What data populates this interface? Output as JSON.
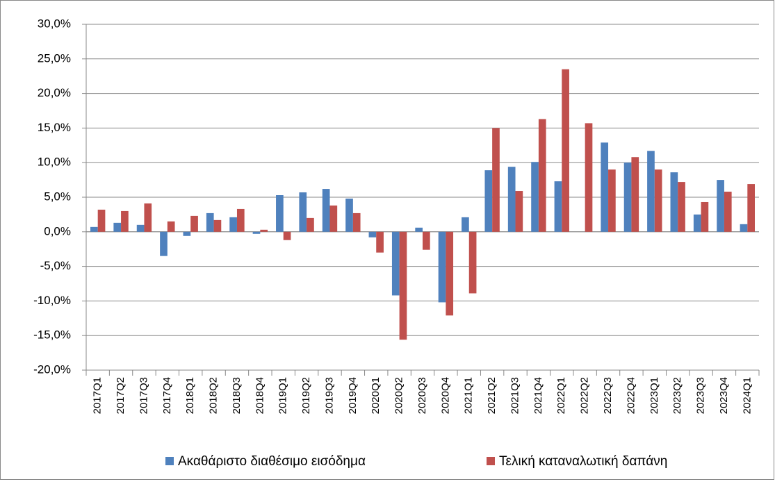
{
  "chart_data": {
    "type": "bar",
    "categories": [
      "2017Q1",
      "2017Q2",
      "2017Q3",
      "2017Q4",
      "2018Q1",
      "2018Q2",
      "2018Q3",
      "2018Q4",
      "2019Q1",
      "2019Q2",
      "2019Q3",
      "2019Q4",
      "2020Q1",
      "2020Q2",
      "2020Q3",
      "2020Q4",
      "2021Q1",
      "2021Q2",
      "2021Q3",
      "2021Q4",
      "2022Q1",
      "2022Q2",
      "2022Q3",
      "2022Q4",
      "2023Q1",
      "2023Q2",
      "2023Q3",
      "2023Q4",
      "2024Q1"
    ],
    "series": [
      {
        "name": "Ακαθάριστο διαθέσιμο εισόδημα",
        "color": "#4f81bd",
        "values": [
          0.7,
          1.3,
          1.0,
          -3.5,
          -0.6,
          2.7,
          2.1,
          -0.3,
          5.3,
          5.7,
          6.2,
          4.8,
          -0.8,
          -9.2,
          0.6,
          -10.2,
          2.1,
          8.9,
          9.4,
          10.1,
          7.3,
          0.0,
          12.9,
          10.0,
          11.7,
          8.6,
          2.5,
          7.5,
          1.1
        ]
      },
      {
        "name": "Τελική καταναλωτική δαπάνη",
        "color": "#c0504d",
        "values": [
          3.2,
          3.0,
          4.1,
          1.5,
          2.3,
          1.7,
          3.3,
          0.3,
          -1.2,
          2.0,
          3.8,
          2.7,
          -3.0,
          -15.6,
          -2.6,
          -12.1,
          -8.9,
          15.0,
          5.9,
          16.3,
          23.5,
          15.7,
          9.0,
          10.8,
          9.0,
          7.2,
          4.3,
          5.8,
          6.9
        ]
      }
    ],
    "ylim": [
      -20,
      30
    ],
    "yticks": [
      {
        "value": -20,
        "label": "-20,0%"
      },
      {
        "value": -15,
        "label": "-15,0%"
      },
      {
        "value": -10,
        "label": "-10,0%"
      },
      {
        "value": -5,
        "label": "-5,0%"
      },
      {
        "value": 0,
        "label": "0,0%"
      },
      {
        "value": 5,
        "label": "5,0%"
      },
      {
        "value": 10,
        "label": "10,0%"
      },
      {
        "value": 15,
        "label": "15,0%"
      },
      {
        "value": 20,
        "label": "20,0%"
      },
      {
        "value": 25,
        "label": "25,0%"
      },
      {
        "value": 30,
        "label": "30,0%"
      }
    ],
    "grid": true
  }
}
